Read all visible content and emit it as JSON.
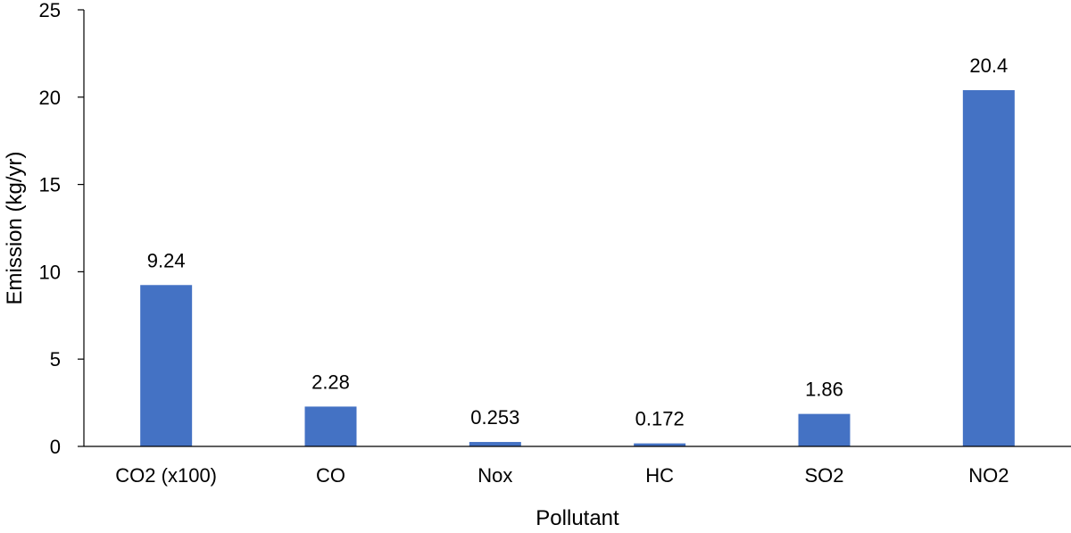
{
  "chart_data": {
    "type": "bar",
    "title": "",
    "xlabel": "Pollutant",
    "ylabel": "Emission (kg/yr)",
    "ylim": [
      0,
      25
    ],
    "yticks": [
      0,
      5,
      10,
      15,
      20,
      25
    ],
    "ytick_labels": [
      "0",
      "5",
      "10",
      "15",
      "20",
      "25"
    ],
    "categories": [
      "CO2 (x100)",
      "CO",
      "Nox",
      "HC",
      "SO2",
      "NO2"
    ],
    "values": [
      9.24,
      2.28,
      0.253,
      0.172,
      1.86,
      20.4
    ],
    "data_labels": [
      "9.24",
      "2.28",
      "0.253",
      "0.172",
      "1.86",
      "20.4"
    ],
    "bar_color": "#4472C4",
    "grid": false,
    "legend": "none"
  }
}
